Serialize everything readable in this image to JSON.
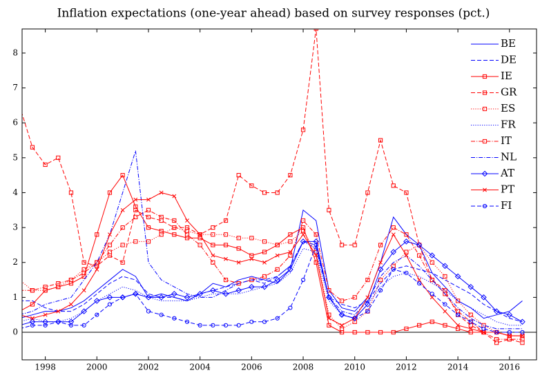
{
  "chart_data": {
    "type": "line",
    "title": "Inflation expectations (one-year ahead) based on survey responses (pct.)",
    "x": [
      1997,
      1997.5,
      1998,
      1998.5,
      1999,
      1999.5,
      2000,
      2000.5,
      2001,
      2001.5,
      2002,
      2002.5,
      2003,
      2003.5,
      2004,
      2004.5,
      2005,
      2005.5,
      2006,
      2006.5,
      2007,
      2007.5,
      2008,
      2008.5,
      2009,
      2009.5,
      2010,
      2010.5,
      2011,
      2011.5,
      2012,
      2012.5,
      2013,
      2013.5,
      2014,
      2014.5,
      2015,
      2015.5,
      2016,
      2016.5
    ],
    "xlim": [
      1997.1,
      2017.05
    ],
    "xticks": [
      1998,
      2000,
      2002,
      2004,
      2006,
      2008,
      2010,
      2012,
      2014,
      2016
    ],
    "ylim": [
      -0.79,
      8.69
    ],
    "yticks": [
      0,
      1,
      2,
      3,
      4,
      5,
      6,
      7,
      8
    ],
    "reference_line": 0,
    "legend": "upper right",
    "series": [
      {
        "name": "BE",
        "color": "#0000ff",
        "line_style": "solid",
        "marker": "none",
        "values": [
          0.4,
          0.5,
          0.6,
          0.6,
          0.7,
          0.9,
          1.2,
          1.5,
          1.8,
          1.6,
          1.0,
          1.1,
          1.0,
          0.9,
          1.1,
          1.4,
          1.3,
          1.5,
          1.6,
          1.5,
          1.4,
          1.8,
          3.5,
          3.2,
          1.2,
          0.7,
          0.6,
          1.0,
          2.0,
          3.3,
          2.8,
          2.5,
          1.7,
          1.3,
          0.9,
          0.7,
          0.4,
          0.5,
          0.6,
          0.9
        ]
      },
      {
        "name": "DE",
        "color": "#0000ff",
        "line_style": "dashed",
        "marker": "none",
        "values": [
          0.9,
          0.9,
          0.7,
          0.6,
          0.6,
          0.8,
          1.1,
          1.4,
          1.6,
          1.5,
          1.1,
          1.0,
          1.0,
          0.9,
          1.1,
          1.2,
          1.3,
          1.4,
          1.5,
          1.4,
          1.6,
          1.9,
          2.6,
          2.5,
          1.0,
          0.8,
          0.7,
          0.9,
          1.4,
          1.8,
          1.9,
          1.8,
          1.7,
          1.5,
          1.3,
          1.1,
          0.8,
          0.6,
          0.4,
          0.3
        ]
      },
      {
        "name": "IE",
        "color": "#ff0000",
        "line_style": "solid",
        "marker": "square",
        "values": [
          0.6,
          0.8,
          1.2,
          1.3,
          1.4,
          1.6,
          2.8,
          4.0,
          4.5,
          3.6,
          3.0,
          2.9,
          2.8,
          2.7,
          2.7,
          2.5,
          2.5,
          2.4,
          2.2,
          2.3,
          2.5,
          2.8,
          3.0,
          2.0,
          0.2,
          0.0,
          0.0,
          0.0,
          0.0,
          0.0,
          0.1,
          0.2,
          0.3,
          0.2,
          0.1,
          0.0,
          0.0,
          0.0,
          -0.1,
          -0.1
        ]
      },
      {
        "name": "GR",
        "color": "#ff0000",
        "line_style": "dashed",
        "marker": "square",
        "values": [
          6.5,
          5.3,
          4.8,
          5.0,
          4.0,
          2.0,
          1.9,
          2.2,
          2.0,
          3.5,
          3.3,
          3.2,
          3.0,
          3.0,
          2.8,
          3.0,
          3.2,
          4.5,
          4.2,
          4.0,
          4.0,
          4.5,
          5.8,
          8.7,
          3.5,
          2.5,
          2.5,
          4.0,
          5.5,
          4.2,
          4.0,
          2.5,
          1.5,
          1.2,
          0.5,
          0.2,
          0.0,
          -0.3,
          -0.2,
          -0.3
        ]
      },
      {
        "name": "ES",
        "color": "#ff0000",
        "line_style": "dotted",
        "marker": "square",
        "values": [
          1.5,
          1.2,
          1.2,
          1.3,
          1.5,
          1.8,
          2.0,
          2.3,
          2.5,
          2.6,
          2.6,
          2.8,
          3.0,
          2.9,
          2.8,
          2.8,
          2.8,
          2.7,
          2.7,
          2.6,
          2.5,
          2.6,
          2.9,
          2.3,
          0.5,
          0.1,
          0.3,
          0.6,
          1.5,
          1.9,
          2.3,
          2.5,
          2.0,
          1.6,
          0.9,
          0.5,
          0.2,
          0.0,
          -0.1,
          -0.1
        ]
      },
      {
        "name": "FR",
        "color": "#0000ff",
        "line_style": "dotted",
        "marker": "none",
        "values": [
          0.3,
          0.4,
          0.3,
          0.3,
          0.4,
          0.6,
          0.9,
          1.1,
          1.3,
          1.2,
          1.0,
          0.9,
          0.9,
          0.9,
          1.0,
          1.1,
          1.1,
          1.1,
          1.2,
          1.3,
          1.4,
          1.7,
          2.4,
          2.3,
          0.9,
          0.5,
          0.4,
          0.8,
          1.3,
          1.6,
          1.7,
          1.6,
          1.4,
          1.2,
          0.9,
          0.7,
          0.5,
          0.3,
          0.2,
          0.2
        ]
      },
      {
        "name": "IT",
        "color": "#ff0000",
        "line_style": "dashdot",
        "marker": "square",
        "values": [
          1.2,
          1.2,
          1.3,
          1.4,
          1.5,
          1.7,
          2.0,
          2.5,
          3.0,
          3.3,
          3.5,
          3.3,
          3.2,
          2.8,
          2.5,
          2.0,
          1.5,
          1.4,
          1.5,
          1.6,
          1.8,
          2.2,
          3.2,
          2.8,
          1.2,
          0.9,
          1.0,
          1.5,
          2.5,
          3.0,
          2.8,
          2.2,
          1.5,
          1.1,
          0.6,
          0.3,
          0.0,
          -0.2,
          -0.2,
          -0.2
        ]
      },
      {
        "name": "NL",
        "color": "#0000ff",
        "line_style": "dashdot",
        "marker": "none",
        "values": [
          0.5,
          0.6,
          0.8,
          0.9,
          1.0,
          1.5,
          2.0,
          2.8,
          4.0,
          5.2,
          2.0,
          1.5,
          1.3,
          1.1,
          1.0,
          1.0,
          1.2,
          1.4,
          1.5,
          1.5,
          1.6,
          1.9,
          2.6,
          2.4,
          1.0,
          0.6,
          0.5,
          0.9,
          1.6,
          2.0,
          2.2,
          1.9,
          1.5,
          1.1,
          0.7,
          0.4,
          0.2,
          0.1,
          0.1,
          0.1
        ]
      },
      {
        "name": "AT",
        "color": "#0000ff",
        "line_style": "solid",
        "marker": "diamond",
        "values": [
          0.2,
          0.3,
          0.3,
          0.3,
          0.3,
          0.6,
          0.9,
          1.0,
          1.0,
          1.1,
          1.0,
          1.0,
          1.1,
          1.0,
          1.1,
          1.2,
          1.1,
          1.2,
          1.3,
          1.3,
          1.5,
          1.8,
          2.6,
          2.6,
          1.0,
          0.5,
          0.4,
          0.8,
          1.8,
          2.3,
          2.6,
          2.5,
          2.2,
          1.9,
          1.6,
          1.3,
          1.0,
          0.6,
          0.5,
          0.3
        ]
      },
      {
        "name": "PT",
        "color": "#ff0000",
        "line_style": "solid",
        "marker": "x",
        "values": [
          0.5,
          0.4,
          0.5,
          0.6,
          0.8,
          1.2,
          1.8,
          2.8,
          3.5,
          3.8,
          3.8,
          4.0,
          3.9,
          3.2,
          2.8,
          2.2,
          2.1,
          2.0,
          2.1,
          2.0,
          2.2,
          2.3,
          2.8,
          2.2,
          0.4,
          0.2,
          0.4,
          1.0,
          2.0,
          2.8,
          2.2,
          1.5,
          1.0,
          0.6,
          0.2,
          0.1,
          0.0,
          0.0,
          -0.1,
          -0.1
        ]
      },
      {
        "name": "FI",
        "color": "#0000ff",
        "line_style": "dashed",
        "marker": "circle",
        "values": [
          0.1,
          0.2,
          0.2,
          0.3,
          0.2,
          0.2,
          0.5,
          0.8,
          1.0,
          1.1,
          0.6,
          0.5,
          0.4,
          0.3,
          0.2,
          0.2,
          0.2,
          0.2,
          0.3,
          0.3,
          0.4,
          0.7,
          1.5,
          2.5,
          1.0,
          0.5,
          0.4,
          0.6,
          1.2,
          1.8,
          1.7,
          1.4,
          1.1,
          0.8,
          0.5,
          0.3,
          0.1,
          0.0,
          0.0,
          0.0
        ]
      }
    ]
  }
}
